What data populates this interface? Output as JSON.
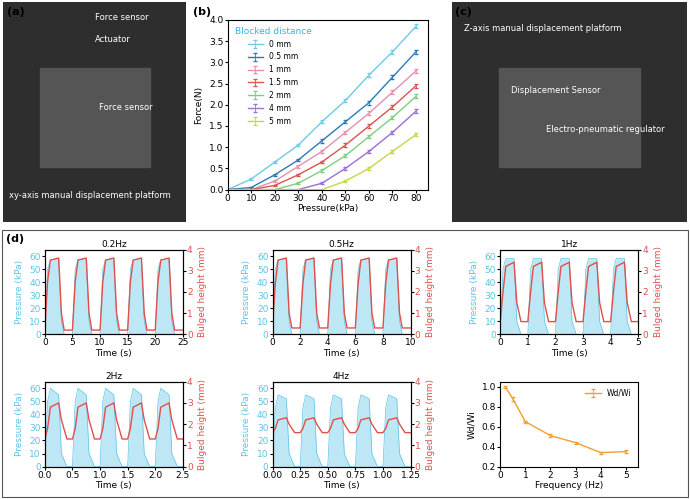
{
  "group_label": "(d)",
  "photos": [
    {
      "panel": "(a)",
      "labels": [
        "Force sensor",
        "Actuator",
        "Force sensor",
        "xy-axis manual displacement platform"
      ]
    },
    {
      "panel": "(c)",
      "labels": [
        "Z-axis manual displacement platform",
        "Displacement Sensor",
        "Electro-pneumatic regulator"
      ]
    }
  ],
  "chart_data": [
    {
      "type": "line",
      "panel": "(b)",
      "title": "Blocked distance",
      "x_label": "Pressure(kPa)",
      "y_label": "Force(N)",
      "x": [
        0,
        10,
        20,
        30,
        40,
        50,
        60,
        70,
        80
      ],
      "xlim": [
        0,
        85
      ],
      "xticks": [
        0,
        10,
        20,
        30,
        40,
        50,
        60,
        70,
        80
      ],
      "ylim": [
        0,
        4.0
      ],
      "yticks": [
        0.0,
        0.5,
        1.0,
        1.5,
        2.0,
        2.5,
        3.0,
        3.5,
        4.0
      ],
      "legend": "upper left",
      "series": [
        {
          "name": "0 mm",
          "color": "#6ecbe8",
          "values": [
            0,
            0.25,
            0.65,
            1.05,
            1.6,
            2.1,
            2.7,
            3.25,
            3.85
          ],
          "errors": [
            0,
            0.03,
            0.03,
            0.03,
            0.04,
            0.04,
            0.05,
            0.05,
            0.05
          ]
        },
        {
          "name": "0.5 mm",
          "color": "#2a7ab8",
          "values": [
            0,
            0.05,
            0.35,
            0.7,
            1.15,
            1.6,
            2.05,
            2.65,
            3.25
          ],
          "errors": [
            0,
            0.02,
            0.03,
            0.03,
            0.04,
            0.04,
            0.05,
            0.05,
            0.05
          ]
        },
        {
          "name": "1 mm",
          "color": "#e68fb0",
          "values": [
            0,
            0,
            0.2,
            0.55,
            0.9,
            1.35,
            1.8,
            2.3,
            2.8
          ],
          "errors": [
            0,
            0,
            0.03,
            0.03,
            0.04,
            0.04,
            0.05,
            0.05,
            0.05
          ]
        },
        {
          "name": "1.5 mm",
          "color": "#d9534f",
          "values": [
            0,
            0,
            0.1,
            0.35,
            0.65,
            1.05,
            1.5,
            1.95,
            2.45
          ],
          "errors": [
            0,
            0,
            0.02,
            0.03,
            0.03,
            0.04,
            0.04,
            0.05,
            0.05
          ]
        },
        {
          "name": "2 mm",
          "color": "#7ccf7c",
          "values": [
            0,
            0,
            0,
            0.15,
            0.45,
            0.8,
            1.25,
            1.7,
            2.2
          ],
          "errors": [
            0,
            0,
            0,
            0.02,
            0.03,
            0.03,
            0.04,
            0.04,
            0.05
          ]
        },
        {
          "name": "4 mm",
          "color": "#9b6fd6",
          "values": [
            0,
            0,
            0,
            0,
            0.15,
            0.5,
            0.9,
            1.35,
            1.85
          ],
          "errors": [
            0,
            0,
            0,
            0,
            0.02,
            0.03,
            0.03,
            0.04,
            0.04
          ]
        },
        {
          "name": "5 mm",
          "color": "#c8d64a",
          "values": [
            0,
            0,
            0,
            0,
            0,
            0.2,
            0.5,
            0.9,
            1.3
          ],
          "errors": [
            0,
            0,
            0,
            0,
            0,
            0.02,
            0.03,
            0.03,
            0.04
          ]
        }
      ]
    },
    {
      "type": "line",
      "title": "0.2Hz",
      "x_label": "Time (s)",
      "y_label": "Pressure (kPa)",
      "y2_label": "Bulged height (mm)",
      "x": [
        0,
        0.5,
        1,
        2.5,
        3,
        3.5,
        5,
        5.5,
        6,
        7.5,
        8,
        8.5,
        10,
        10.5,
        11,
        12.5,
        13,
        13.5,
        15,
        15.5,
        16,
        17.5,
        18,
        18.5,
        20,
        20.5,
        21,
        22.5,
        23,
        23.5,
        25
      ],
      "xlim": [
        0,
        25
      ],
      "xticks": [
        0,
        5,
        10,
        15,
        20,
        25
      ],
      "ylim": [
        0,
        65
      ],
      "yticks": [
        0,
        10,
        20,
        30,
        40,
        50,
        60
      ],
      "y2lim": [
        0,
        4
      ],
      "y2ticks": [
        0,
        1,
        2,
        3,
        4
      ],
      "series": [
        {
          "name": "Pressure",
          "type": "area",
          "axis": "y",
          "color": "#5bc4e6",
          "values": [
            0,
            50,
            57,
            58,
            10,
            0,
            0,
            50,
            57,
            58,
            10,
            0,
            0,
            50,
            57,
            58,
            10,
            0,
            0,
            50,
            57,
            58,
            10,
            0,
            0,
            50,
            57,
            58,
            10,
            0,
            0
          ]
        },
        {
          "name": "Bulged height",
          "type": "line",
          "axis": "y2",
          "color": "#e0504a",
          "values": [
            0.2,
            2.5,
            3.5,
            3.6,
            1.0,
            0.2,
            0.2,
            2.5,
            3.5,
            3.6,
            1.0,
            0.2,
            0.2,
            2.5,
            3.5,
            3.6,
            1.0,
            0.2,
            0.2,
            2.5,
            3.5,
            3.6,
            1.0,
            0.2,
            0.2,
            2.5,
            3.5,
            3.6,
            1.0,
            0.2,
            0.2
          ]
        }
      ]
    },
    {
      "type": "line",
      "title": "0.5Hz",
      "x_label": "Time (s)",
      "y_label": "Pressure (kPa)",
      "y2_label": "Bulged height (mm)",
      "x": [
        0,
        0.2,
        0.4,
        1,
        1.2,
        1.4,
        2,
        2.2,
        2.4,
        3,
        3.2,
        3.4,
        4,
        4.2,
        4.4,
        5,
        5.2,
        5.4,
        6,
        6.2,
        6.4,
        7,
        7.2,
        7.4,
        8,
        8.2,
        8.4,
        9,
        9.2,
        9.4,
        10
      ],
      "xlim": [
        0,
        10
      ],
      "xticks": [
        0,
        2,
        4,
        6,
        8,
        10
      ],
      "ylim": [
        0,
        65
      ],
      "yticks": [
        0,
        10,
        20,
        30,
        40,
        50,
        60
      ],
      "y2lim": [
        0,
        4
      ],
      "y2ticks": [
        0,
        1,
        2,
        3,
        4
      ],
      "series": [
        {
          "name": "Pressure",
          "type": "area",
          "axis": "y",
          "color": "#5bc4e6",
          "values": [
            0,
            50,
            57,
            58,
            10,
            0,
            0,
            50,
            57,
            58,
            10,
            0,
            0,
            50,
            57,
            58,
            10,
            0,
            0,
            50,
            57,
            58,
            10,
            0,
            0,
            50,
            57,
            58,
            10,
            0,
            0
          ]
        },
        {
          "name": "Bulged height",
          "type": "line",
          "axis": "y2",
          "color": "#e0504a",
          "values": [
            0.3,
            2.4,
            3.5,
            3.6,
            1.0,
            0.3,
            0.3,
            2.4,
            3.5,
            3.6,
            1.0,
            0.3,
            0.3,
            2.4,
            3.5,
            3.6,
            1.0,
            0.3,
            0.3,
            2.4,
            3.5,
            3.6,
            1.0,
            0.3,
            0.3,
            2.4,
            3.5,
            3.6,
            1.0,
            0.3,
            0.3
          ]
        }
      ]
    },
    {
      "type": "line",
      "title": "1Hz",
      "x_label": "Time (s)",
      "y_label": "Pressure (kPa)",
      "y2_label": "Bulged height (mm)",
      "x": [
        0,
        0.1,
        0.2,
        0.5,
        0.6,
        0.75,
        1,
        1.1,
        1.2,
        1.5,
        1.6,
        1.75,
        2,
        2.1,
        2.2,
        2.5,
        2.6,
        2.75,
        3,
        3.1,
        3.2,
        3.5,
        3.6,
        3.75,
        4,
        4.1,
        4.2,
        4.5,
        4.6,
        4.75,
        5
      ],
      "xlim": [
        0,
        5
      ],
      "xticks": [
        0,
        1,
        2,
        3,
        4,
        5
      ],
      "ylim": [
        0,
        65
      ],
      "yticks": [
        0,
        10,
        20,
        30,
        40,
        50,
        60
      ],
      "y2lim": [
        0,
        4
      ],
      "y2ticks": [
        0,
        1,
        2,
        3,
        4
      ],
      "series": [
        {
          "name": "Pressure",
          "type": "area",
          "axis": "y",
          "color": "#5bc4e6",
          "values": [
            0,
            50,
            58,
            58,
            10,
            0,
            0,
            50,
            58,
            58,
            10,
            0,
            0,
            50,
            58,
            58,
            10,
            0,
            0,
            50,
            58,
            58,
            10,
            0,
            0,
            50,
            58,
            58,
            10,
            0,
            0
          ]
        },
        {
          "name": "Bulged height",
          "type": "line",
          "axis": "y2",
          "color": "#e0504a",
          "values": [
            0.6,
            2.0,
            3.2,
            3.4,
            1.5,
            0.6,
            0.6,
            2.0,
            3.2,
            3.4,
            1.5,
            0.6,
            0.6,
            2.0,
            3.2,
            3.4,
            1.5,
            0.6,
            0.6,
            2.0,
            3.2,
            3.4,
            1.5,
            0.6,
            0.6,
            2.0,
            3.2,
            3.4,
            1.5,
            0.6,
            0.6
          ]
        }
      ]
    },
    {
      "type": "line",
      "title": "2Hz",
      "x_label": "Time (s)",
      "y_label": "Pressure (kPa)",
      "y2_label": "Bulged height (mm)",
      "x": [
        0,
        0.05,
        0.1,
        0.25,
        0.3,
        0.4,
        0.5,
        0.55,
        0.6,
        0.75,
        0.8,
        0.9,
        1,
        1.05,
        1.1,
        1.25,
        1.3,
        1.4,
        1.5,
        1.55,
        1.6,
        1.75,
        1.8,
        1.9,
        2,
        2.05,
        2.1,
        2.25,
        2.3,
        2.4,
        2.5
      ],
      "xlim": [
        0,
        2.5
      ],
      "xticks": [
        {
          "value": 0,
          "label": "0.0"
        },
        {
          "value": 0.5,
          "label": "0.5"
        },
        {
          "value": 1,
          "label": "1.0"
        },
        {
          "value": 1.5,
          "label": "1.5"
        },
        {
          "value": 2,
          "label": "2.0"
        },
        {
          "value": 2.5,
          "label": "2.5"
        }
      ],
      "ylim": [
        0,
        65
      ],
      "yticks": [
        0,
        10,
        20,
        30,
        40,
        50,
        60
      ],
      "y2lim": [
        0,
        4
      ],
      "y2ticks": [
        0,
        1,
        2,
        3,
        4
      ],
      "series": [
        {
          "name": "Pressure",
          "type": "area",
          "axis": "y",
          "color": "#5bc4e6",
          "values": [
            0,
            50,
            60,
            55,
            10,
            0,
            0,
            50,
            60,
            55,
            10,
            0,
            0,
            50,
            60,
            55,
            10,
            0,
            0,
            50,
            60,
            55,
            10,
            0,
            0,
            50,
            60,
            55,
            10,
            0,
            0
          ]
        },
        {
          "name": "Bulged height",
          "type": "line",
          "axis": "y2",
          "color": "#e0504a",
          "values": [
            1.3,
            1.8,
            2.8,
            3.0,
            2.2,
            1.3,
            1.3,
            1.8,
            2.8,
            3.0,
            2.2,
            1.3,
            1.3,
            1.8,
            2.8,
            3.0,
            2.2,
            1.3,
            1.3,
            1.8,
            2.8,
            3.0,
            2.2,
            1.3,
            1.3,
            1.8,
            2.8,
            3.0,
            2.2,
            1.3,
            1.3
          ]
        }
      ]
    },
    {
      "type": "line",
      "title": "4Hz",
      "x_label": "Time (s)",
      "y_label": "Pressure (kPa)",
      "y2_label": "Bulged height (mm)",
      "x": [
        0,
        0.025,
        0.05,
        0.125,
        0.15,
        0.2,
        0.25,
        0.275,
        0.3,
        0.375,
        0.4,
        0.45,
        0.5,
        0.525,
        0.55,
        0.625,
        0.65,
        0.7,
        0.75,
        0.775,
        0.8,
        0.875,
        0.9,
        0.95,
        1,
        1.025,
        1.05,
        1.125,
        1.15,
        1.2,
        1.25
      ],
      "xlim": [
        0,
        1.25
      ],
      "xticks": [
        {
          "value": 0,
          "label": "0.00"
        },
        {
          "value": 0.25,
          "label": "0.25"
        },
        {
          "value": 0.5,
          "label": "0.50"
        },
        {
          "value": 0.75,
          "label": "0.75"
        },
        {
          "value": 1,
          "label": "1.00"
        },
        {
          "value": 1.25,
          "label": "1.25"
        }
      ],
      "ylim": [
        0,
        65
      ],
      "yticks": [
        0,
        10,
        20,
        30,
        40,
        50,
        60
      ],
      "y2lim": [
        0,
        4
      ],
      "y2ticks": [
        0,
        1,
        2,
        3,
        4
      ],
      "series": [
        {
          "name": "Pressure",
          "type": "area",
          "axis": "y",
          "color": "#5bc4e6",
          "values": [
            0,
            45,
            55,
            52,
            10,
            0,
            0,
            45,
            55,
            52,
            10,
            0,
            0,
            45,
            55,
            52,
            10,
            0,
            0,
            45,
            55,
            52,
            10,
            0,
            0,
            45,
            55,
            52,
            10,
            0,
            0
          ]
        },
        {
          "name": "Bulged height",
          "type": "line",
          "axis": "y2",
          "color": "#e0504a",
          "values": [
            1.6,
            1.8,
            2.2,
            2.3,
            2.0,
            1.6,
            1.6,
            1.8,
            2.2,
            2.3,
            2.0,
            1.6,
            1.6,
            1.8,
            2.2,
            2.3,
            2.0,
            1.6,
            1.6,
            1.8,
            2.2,
            2.3,
            2.0,
            1.6,
            1.6,
            1.8,
            2.2,
            2.3,
            2.0,
            1.6,
            1.6
          ]
        }
      ]
    },
    {
      "type": "line",
      "x_label": "Frequency (Hz)",
      "y_label": "Wd/Wi",
      "x": [
        0.2,
        0.5,
        1,
        2,
        3,
        4,
        5
      ],
      "xlim": [
        0,
        5.5
      ],
      "xticks": [
        0,
        1,
        2,
        3,
        4,
        5
      ],
      "ylim": [
        0.2,
        1.05
      ],
      "yticks": [
        0.2,
        0.4,
        0.6,
        0.8,
        1.0
      ],
      "legend": "upper right",
      "series": [
        {
          "name": "Wd/Wi",
          "color": "#f0a030",
          "values": [
            1.0,
            0.88,
            0.65,
            0.51,
            0.44,
            0.34,
            0.35
          ],
          "errors": [
            0.01,
            0.02,
            0.01,
            0.015,
            0.01,
            0.01,
            0.015
          ]
        }
      ]
    }
  ]
}
